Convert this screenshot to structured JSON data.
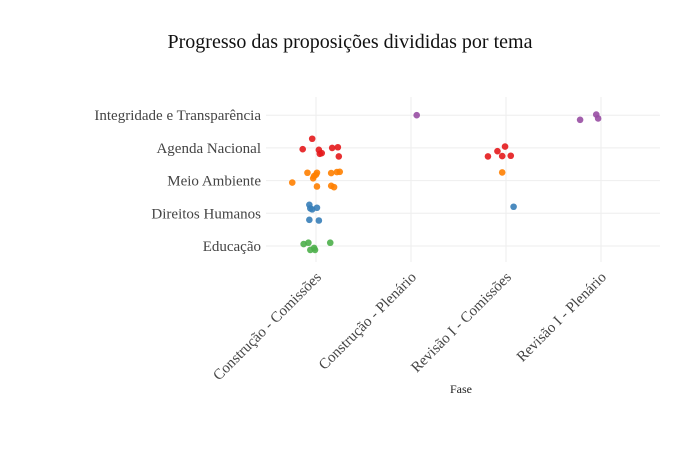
{
  "chart_data": {
    "type": "scatter",
    "title": "Progresso das proposições divididas por tema",
    "xlabel": "Fase",
    "ylabel": "",
    "x_categories": [
      "Construção - Comissões",
      "Construção - Plenário",
      "Revisão I - Comissões",
      "Revisão I - Plenário"
    ],
    "y_categories": [
      "Educação",
      "Direitos Humanos",
      "Meio Ambiente",
      "Agenda Nacional",
      "Integridade e Transparência"
    ],
    "grid": true,
    "legend": "none",
    "colors": {
      "Integridade e Transparência": "#984ea3",
      "Agenda Nacional": "#e41a1c",
      "Meio Ambiente": "#ff7f00",
      "Direitos Humanos": "#377eb8",
      "Educação": "#4daf4a"
    },
    "points": [
      {
        "x": "Construção - Plenário",
        "y": "Integridade e Transparência",
        "jx": 0.06,
        "jy": 0.0
      },
      {
        "x": "Revisão I - Plenário",
        "y": "Integridade e Transparência",
        "jx": -0.22,
        "jy": -0.14
      },
      {
        "x": "Revisão I - Plenário",
        "y": "Integridade e Transparência",
        "jx": -0.05,
        "jy": 0.02
      },
      {
        "x": "Revisão I - Plenário",
        "y": "Integridade e Transparência",
        "jx": -0.03,
        "jy": -0.1
      },
      {
        "x": "Construção - Comissões",
        "y": "Agenda Nacional",
        "jx": -0.04,
        "jy": 0.28
      },
      {
        "x": "Construção - Comissões",
        "y": "Agenda Nacional",
        "jx": -0.14,
        "jy": -0.04
      },
      {
        "x": "Construção - Comissões",
        "y": "Agenda Nacional",
        "jx": 0.03,
        "jy": -0.06
      },
      {
        "x": "Construção - Comissões",
        "y": "Agenda Nacional",
        "jx": 0.04,
        "jy": -0.18
      },
      {
        "x": "Construção - Comissões",
        "y": "Agenda Nacional",
        "jx": 0.06,
        "jy": -0.16
      },
      {
        "x": "Construção - Comissões",
        "y": "Agenda Nacional",
        "jx": 0.17,
        "jy": 0.0
      },
      {
        "x": "Construção - Comissões",
        "y": "Agenda Nacional",
        "jx": 0.23,
        "jy": 0.02
      },
      {
        "x": "Construção - Comissões",
        "y": "Agenda Nacional",
        "jx": 0.24,
        "jy": -0.26
      },
      {
        "x": "Revisão I - Comissões",
        "y": "Agenda Nacional",
        "jx": -0.19,
        "jy": -0.26
      },
      {
        "x": "Revisão I - Comissões",
        "y": "Agenda Nacional",
        "jx": -0.09,
        "jy": -0.1
      },
      {
        "x": "Revisão I - Comissões",
        "y": "Agenda Nacional",
        "jx": -0.04,
        "jy": -0.25
      },
      {
        "x": "Revisão I - Comissões",
        "y": "Agenda Nacional",
        "jx": -0.01,
        "jy": 0.04
      },
      {
        "x": "Revisão I - Comissões",
        "y": "Agenda Nacional",
        "jx": 0.05,
        "jy": -0.24
      },
      {
        "x": "Construção - Comissões",
        "y": "Meio Ambiente",
        "jx": -0.25,
        "jy": -0.06
      },
      {
        "x": "Construção - Comissões",
        "y": "Meio Ambiente",
        "jx": -0.09,
        "jy": 0.24
      },
      {
        "x": "Construção - Comissões",
        "y": "Meio Ambiente",
        "jx": -0.03,
        "jy": 0.07
      },
      {
        "x": "Construção - Comissões",
        "y": "Meio Ambiente",
        "jx": -0.02,
        "jy": 0.14
      },
      {
        "x": "Construção - Comissões",
        "y": "Meio Ambiente",
        "jx": 0.0,
        "jy": 0.18
      },
      {
        "x": "Construção - Comissões",
        "y": "Meio Ambiente",
        "jx": 0.01,
        "jy": 0.24
      },
      {
        "x": "Construção - Comissões",
        "y": "Meio Ambiente",
        "jx": 0.01,
        "jy": -0.18
      },
      {
        "x": "Construção - Comissões",
        "y": "Meio Ambiente",
        "jx": 0.16,
        "jy": 0.23
      },
      {
        "x": "Construção - Comissões",
        "y": "Meio Ambiente",
        "jx": 0.16,
        "jy": -0.16
      },
      {
        "x": "Construção - Comissões",
        "y": "Meio Ambiente",
        "jx": 0.19,
        "jy": -0.2
      },
      {
        "x": "Construção - Comissões",
        "y": "Meio Ambiente",
        "jx": 0.22,
        "jy": 0.26
      },
      {
        "x": "Construção - Comissões",
        "y": "Meio Ambiente",
        "jx": 0.25,
        "jy": 0.27
      },
      {
        "x": "Revisão I - Comissões",
        "y": "Meio Ambiente",
        "jx": -0.04,
        "jy": 0.25
      },
      {
        "x": "Construção - Comissões",
        "y": "Direitos Humanos",
        "jx": -0.07,
        "jy": 0.26
      },
      {
        "x": "Construção - Comissões",
        "y": "Direitos Humanos",
        "jx": -0.06,
        "jy": 0.15
      },
      {
        "x": "Construção - Comissões",
        "y": "Direitos Humanos",
        "jx": -0.04,
        "jy": 0.12
      },
      {
        "x": "Construção - Comissões",
        "y": "Direitos Humanos",
        "jx": 0.01,
        "jy": 0.17
      },
      {
        "x": "Construção - Comissões",
        "y": "Direitos Humanos",
        "jx": -0.07,
        "jy": -0.2
      },
      {
        "x": "Construção - Comissões",
        "y": "Direitos Humanos",
        "jx": 0.03,
        "jy": -0.22
      },
      {
        "x": "Revisão I - Comissões",
        "y": "Direitos Humanos",
        "jx": 0.08,
        "jy": 0.2
      },
      {
        "x": "Construção - Comissões",
        "y": "Educação",
        "jx": -0.13,
        "jy": 0.06
      },
      {
        "x": "Construção - Comissões",
        "y": "Educação",
        "jx": -0.08,
        "jy": 0.1
      },
      {
        "x": "Construção - Comissões",
        "y": "Educação",
        "jx": -0.06,
        "jy": -0.12
      },
      {
        "x": "Construção - Comissões",
        "y": "Educação",
        "jx": -0.02,
        "jy": -0.06
      },
      {
        "x": "Construção - Comissões",
        "y": "Educação",
        "jx": -0.01,
        "jy": -0.12
      },
      {
        "x": "Construção - Comissões",
        "y": "Educação",
        "jx": 0.15,
        "jy": 0.1
      }
    ]
  }
}
